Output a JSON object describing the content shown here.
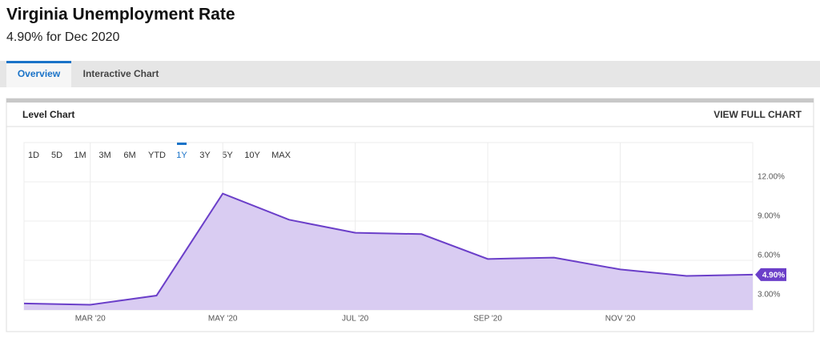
{
  "header": {
    "title": "Virginia Unemployment Rate",
    "subtitle": "4.90% for Dec 2020"
  },
  "tabs": [
    {
      "label": "Overview",
      "active": true
    },
    {
      "label": "Interactive Chart",
      "active": false
    }
  ],
  "panel": {
    "title": "Level Chart",
    "link": "VIEW FULL CHART"
  },
  "ranges": [
    {
      "label": "1D",
      "active": false
    },
    {
      "label": "5D",
      "active": false
    },
    {
      "label": "1M",
      "active": false
    },
    {
      "label": "3M",
      "active": false
    },
    {
      "label": "6M",
      "active": false
    },
    {
      "label": "YTD",
      "active": false
    },
    {
      "label": "1Y",
      "active": true
    },
    {
      "label": "3Y",
      "active": false
    },
    {
      "label": "5Y",
      "active": false
    },
    {
      "label": "10Y",
      "active": false
    },
    {
      "label": "MAX",
      "active": false
    }
  ],
  "chart_data": {
    "type": "area",
    "categories": [
      null,
      "MAR '20",
      null,
      "MAY '20",
      null,
      "JUL '20",
      null,
      "SEP '20",
      null,
      "NOV '20",
      null,
      null
    ],
    "values": [
      2.7,
      2.6,
      3.3,
      11.1,
      9.1,
      8.1,
      8.0,
      6.1,
      6.2,
      5.3,
      4.8,
      4.9
    ],
    "value_labels": [
      null,
      null,
      null,
      null,
      null,
      null,
      null,
      null,
      null,
      null,
      null,
      "4.90%"
    ],
    "color": "#6b3fc9",
    "fill_color": "#d9ccf2",
    "ylim": [
      2.2,
      15
    ],
    "yticks": [
      {
        "value": 3,
        "label": "3.00%"
      },
      {
        "value": 6,
        "label": "6.00%"
      },
      {
        "value": 9,
        "label": "9.00%"
      },
      {
        "value": 12,
        "label": "12.00%"
      }
    ],
    "grid": true
  }
}
